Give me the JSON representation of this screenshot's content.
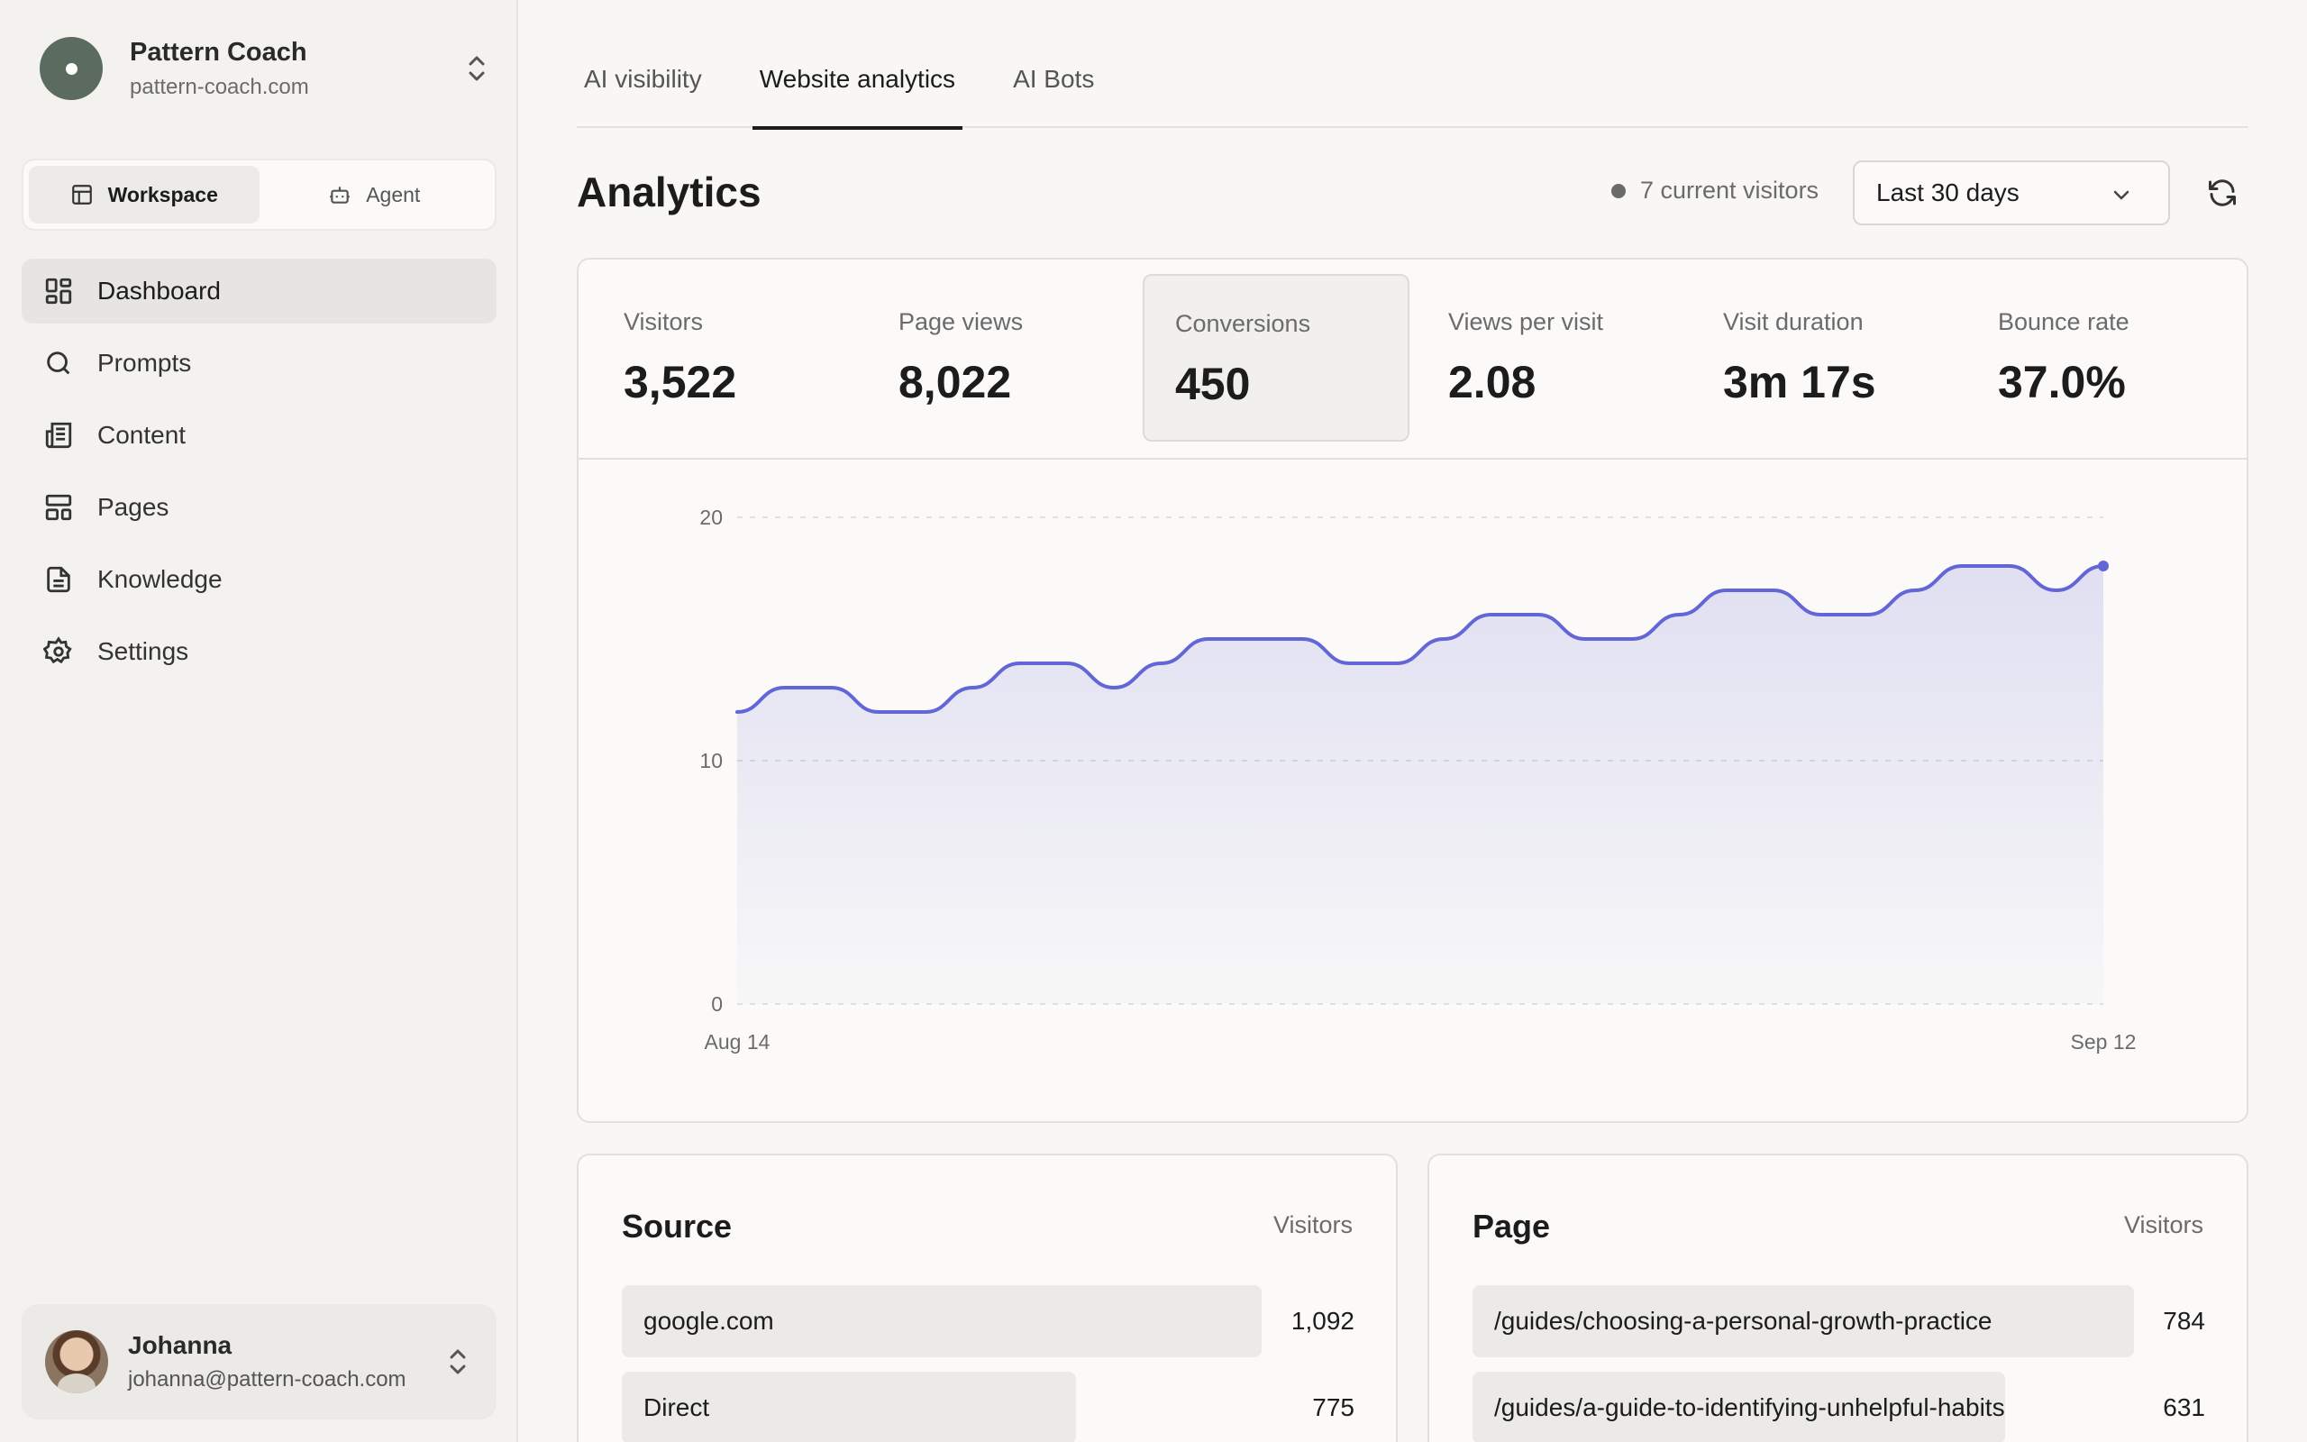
{
  "org": {
    "name": "Pattern Coach",
    "domain": "pattern-coach.com"
  },
  "mode": {
    "workspace": "Workspace",
    "agent": "Agent"
  },
  "nav": {
    "dashboard": "Dashboard",
    "prompts": "Prompts",
    "content": "Content",
    "pages": "Pages",
    "knowledge": "Knowledge",
    "settings": "Settings"
  },
  "user": {
    "name": "Johanna",
    "email": "johanna@pattern-coach.com"
  },
  "tabs": {
    "ai_visibility": "AI visibility",
    "website_analytics": "Website analytics",
    "ai_bots": "AI Bots"
  },
  "header": {
    "title": "Analytics",
    "current_visitors": "7 current visitors",
    "range": "Last 30 days"
  },
  "metrics": [
    {
      "label": "Visitors",
      "value": "3,522"
    },
    {
      "label": "Page views",
      "value": "8,022"
    },
    {
      "label": "Conversions",
      "value": "450"
    },
    {
      "label": "Views per visit",
      "value": "2.08"
    },
    {
      "label": "Visit duration",
      "value": "3m 17s"
    },
    {
      "label": "Bounce rate",
      "value": "37.0%"
    }
  ],
  "chart_data": {
    "type": "area",
    "series": [
      {
        "values": [
          12,
          13,
          13,
          12,
          12,
          13,
          14,
          14,
          13,
          14,
          15,
          15,
          15,
          14,
          14,
          15,
          16,
          16,
          15,
          15,
          16,
          17,
          17,
          16,
          16,
          17,
          18,
          18,
          17,
          18
        ]
      }
    ],
    "xlabels": [
      "Aug 14",
      "Sep 12"
    ],
    "yticks": [
      "0",
      "10",
      "20"
    ],
    "ylim": [
      0,
      20
    ],
    "grid": true,
    "color": "#6366d6"
  },
  "source": {
    "title": "Source",
    "col": "Visitors",
    "rows": [
      {
        "label": "google.com",
        "value": "1,092",
        "visitors": 1092
      },
      {
        "label": "Direct",
        "value": "775",
        "visitors": 775
      }
    ]
  },
  "page": {
    "title": "Page",
    "col": "Visitors",
    "rows": [
      {
        "label": "/guides/choosing-a-personal-growth-practice",
        "value": "784",
        "visitors": 784
      },
      {
        "label": "/guides/a-guide-to-identifying-unhelpful-habits",
        "value": "631",
        "visitors": 631
      }
    ]
  }
}
